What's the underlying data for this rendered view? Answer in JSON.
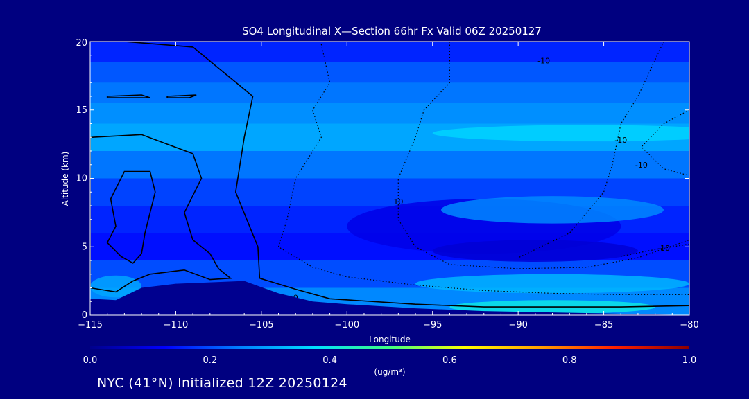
{
  "footer": "NYC (41°N) Initialized 12Z 20250124",
  "chart_data": {
    "type": "heatmap",
    "title": "SO4 Longitudinal X—Section 66hr  Fx Valid 06Z 20250127",
    "xlabel": "Longitude",
    "ylabel": "Altitude (km)",
    "xlim": [
      -115,
      -80
    ],
    "ylim": [
      0,
      20
    ],
    "x_ticks": [
      -115,
      -110,
      -105,
      -100,
      -95,
      -90,
      -85,
      -80
    ],
    "x_tick_labels": [
      "−115",
      "−110",
      "−105",
      "−100",
      "−95",
      "−90",
      "−85",
      "−80"
    ],
    "y_ticks": [
      0,
      5,
      10,
      15,
      20
    ],
    "y_tick_labels": [
      "0",
      "5",
      "10",
      "15",
      "20"
    ],
    "colorbar": {
      "label": "(ug/m³)",
      "min": 0.0,
      "max": 1.0,
      "ticks": [
        "0.0",
        "0.2",
        "0.4",
        "0.6",
        "0.8",
        "1.0"
      ],
      "colors": [
        "#00008b",
        "#0000ff",
        "#0080ff",
        "#00e0ff",
        "#40ff80",
        "#ffff00",
        "#ffa000",
        "#ff2000",
        "#8b0000"
      ]
    },
    "so4_bands": [
      {
        "alt_bottom": 18.5,
        "alt_top": 20.0,
        "value": 0.16
      },
      {
        "alt_bottom": 17.0,
        "alt_top": 18.5,
        "value": 0.21
      },
      {
        "alt_bottom": 15.5,
        "alt_top": 17.0,
        "value": 0.24
      },
      {
        "alt_bottom": 14.0,
        "alt_top": 15.5,
        "value": 0.27
      },
      {
        "alt_bottom": 12.0,
        "alt_top": 14.0,
        "value": 0.3
      },
      {
        "alt_bottom": 10.0,
        "alt_top": 12.0,
        "value": 0.24
      },
      {
        "alt_bottom": 8.0,
        "alt_top": 10.0,
        "value": 0.19
      },
      {
        "alt_bottom": 6.0,
        "alt_top": 8.0,
        "value": 0.16
      },
      {
        "alt_bottom": 4.0,
        "alt_top": 6.0,
        "value": 0.14
      },
      {
        "alt_bottom": 2.0,
        "alt_top": 4.0,
        "value": 0.2
      },
      {
        "alt_bottom": 0.0,
        "alt_top": 2.0,
        "value": 0.26
      }
    ],
    "so4_features": [
      {
        "lon": -92,
        "alt": 6.5,
        "lon_halfwidth": 8,
        "alt_halfwidth": 2.0,
        "value": 0.1
      },
      {
        "lon": -89,
        "alt": 4.7,
        "lon_halfwidth": 6,
        "alt_halfwidth": 0.8,
        "value": 0.08
      },
      {
        "lon": -88,
        "alt": 7.7,
        "lon_halfwidth": 6.5,
        "alt_halfwidth": 1.0,
        "value": 0.26
      },
      {
        "lon": -86,
        "alt": 13.3,
        "lon_halfwidth": 9,
        "alt_halfwidth": 0.6,
        "value": 0.36
      },
      {
        "lon": -88,
        "alt": 2.3,
        "lon_halfwidth": 8,
        "alt_halfwidth": 0.7,
        "value": 0.32
      },
      {
        "lon": -88,
        "alt": 0.6,
        "lon_halfwidth": 6,
        "alt_halfwidth": 0.5,
        "value": 0.4
      },
      {
        "lon": -113.5,
        "alt": 2.1,
        "lon_halfwidth": 1.5,
        "alt_halfwidth": 0.8,
        "value": 0.3
      }
    ],
    "terrain": [
      {
        "lon": -115,
        "alt": 1.2
      },
      {
        "lon": -113.5,
        "alt": 1.1
      },
      {
        "lon": -112,
        "alt": 2.0
      },
      {
        "lon": -110,
        "alt": 2.3
      },
      {
        "lon": -108,
        "alt": 2.4
      },
      {
        "lon": -106,
        "alt": 2.5
      },
      {
        "lon": -104,
        "alt": 1.6
      },
      {
        "lon": -102,
        "alt": 1.0
      },
      {
        "lon": -100,
        "alt": 0.8
      },
      {
        "lon": -96,
        "alt": 0.5
      },
      {
        "lon": -92,
        "alt": 0.3
      },
      {
        "lon": -88,
        "alt": 0.2
      },
      {
        "lon": -84,
        "alt": 0.1
      },
      {
        "lon": -80,
        "alt": 0.0
      }
    ],
    "temperature_contours": [
      {
        "label": "0",
        "style": "solid",
        "label_lon": -103,
        "label_alt": 1.3,
        "points": [
          [
            -113,
            20
          ],
          [
            -109,
            19.6
          ],
          [
            -105.5,
            16
          ],
          [
            -106,
            13
          ],
          [
            -106.5,
            9
          ],
          [
            -105.2,
            5
          ],
          [
            -105.1,
            2.7
          ],
          [
            -103,
            1.9
          ],
          [
            -101,
            1.2
          ],
          [
            -96,
            0.8
          ],
          [
            -92,
            0.6
          ],
          [
            -88,
            0.6
          ],
          [
            -84,
            0.6
          ],
          [
            -80,
            0.7
          ]
        ]
      },
      {
        "label": "10",
        "style": "dotted",
        "label_lon": -97,
        "label_alt": 8.3,
        "points": [
          [
            -101.5,
            19.8
          ],
          [
            -101,
            17
          ],
          [
            -102,
            15
          ],
          [
            -101.5,
            13
          ],
          [
            -103,
            10
          ],
          [
            -103.5,
            7
          ],
          [
            -104,
            5
          ],
          [
            -102,
            3.5
          ],
          [
            -100,
            2.8
          ],
          [
            -96,
            2.2
          ],
          [
            -92,
            1.8
          ],
          [
            -88,
            1.6
          ],
          [
            -84,
            1.5
          ],
          [
            -80,
            1.5
          ]
        ]
      },
      {
        "label": "-10",
        "style": "dotted",
        "label_lon": -88.5,
        "label_alt": 18.6,
        "points": [
          [
            -94,
            20
          ],
          [
            -94,
            17
          ],
          [
            -95.5,
            15
          ],
          [
            -96,
            13
          ],
          [
            -97,
            10
          ],
          [
            -97,
            7
          ],
          [
            -96,
            5
          ],
          [
            -94,
            3.7
          ],
          [
            -90,
            3.4
          ],
          [
            -86,
            3.5
          ],
          [
            -83,
            4.2
          ],
          [
            -80,
            5.5
          ]
        ]
      },
      {
        "label": "-10",
        "style": "dotted",
        "label_lon": -84,
        "label_alt": 12.8,
        "points": [
          [
            -81.5,
            20
          ],
          [
            -83,
            16
          ],
          [
            -84,
            14
          ],
          [
            -84.5,
            11
          ],
          [
            -85,
            9
          ],
          [
            -87,
            6
          ],
          [
            -90,
            4.2
          ]
        ]
      },
      {
        "label": "-10",
        "style": "dotted",
        "label_lon": -82.8,
        "label_alt": 11.0,
        "points": [
          [
            -80,
            15
          ],
          [
            -81.5,
            14
          ],
          [
            -82.8,
            12.3
          ],
          [
            -81.5,
            10.7
          ],
          [
            -80,
            10.2
          ]
        ]
      },
      {
        "label": "-10",
        "style": "dotted",
        "label_lon": -81.5,
        "label_alt": 4.9,
        "points": [
          [
            -80,
            5.2
          ],
          [
            -82,
            4.8
          ],
          [
            -84,
            4.3
          ]
        ]
      }
    ],
    "solid_regions": [
      [
        [
          -115,
          13
        ],
        [
          -112,
          13.2
        ],
        [
          -110.5,
          12.5
        ],
        [
          -109,
          11.8
        ],
        [
          -108.5,
          10
        ],
        [
          -109.5,
          7.5
        ],
        [
          -109,
          5.5
        ],
        [
          -108,
          4.5
        ],
        [
          -107.5,
          3.4
        ],
        [
          -106.8,
          2.7
        ],
        [
          -108,
          2.6
        ],
        [
          -109.5,
          3.3
        ],
        [
          -111.5,
          3.0
        ],
        [
          -112.5,
          2.5
        ],
        [
          -113.5,
          1.7
        ],
        [
          -115,
          2.0
        ]
      ],
      [
        [
          -113,
          10.5
        ],
        [
          -111.5,
          10.5
        ],
        [
          -111.2,
          9
        ],
        [
          -111.5,
          7.5
        ],
        [
          -111.8,
          6
        ],
        [
          -112,
          4.5
        ],
        [
          -112.5,
          3.8
        ],
        [
          -113.2,
          4.3
        ],
        [
          -114,
          5.3
        ],
        [
          -113.5,
          6.5
        ],
        [
          -113.8,
          8.5
        ]
      ],
      [
        [
          -114,
          16
        ],
        [
          -112,
          16.1
        ],
        [
          -111.5,
          15.9
        ],
        [
          -114,
          15.9
        ]
      ],
      [
        [
          -110.5,
          16
        ],
        [
          -108.8,
          16.1
        ],
        [
          -109.2,
          15.9
        ],
        [
          -110.5,
          15.9
        ]
      ]
    ]
  }
}
